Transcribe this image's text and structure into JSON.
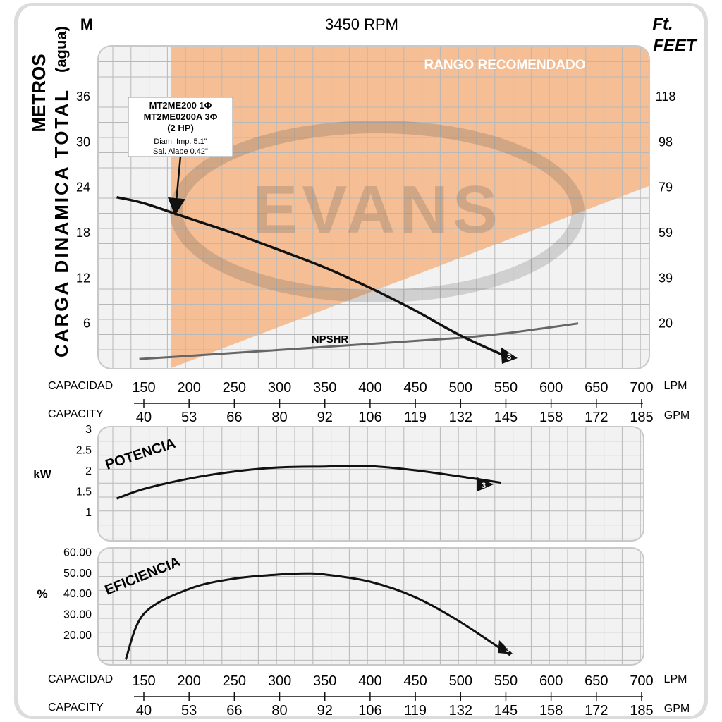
{
  "header": {
    "rpm": "3450 RPM",
    "unit_left": "M",
    "unit_right_1": "Ft.",
    "unit_right_2": "FEET",
    "yaxis_title_1": "METROS",
    "yaxis_title_2": "(agua)",
    "yaxis_title_3": "CARGA DINAMICA TOTAL"
  },
  "recommended_label": "RANGO RECOMENDADO",
  "watermark": "EVANS",
  "model_box": {
    "line1": "MT2ME200 1Φ",
    "line2": "MT2ME0200A 3Φ",
    "line3": "(2 HP)",
    "line4": "Diam. Imp. 5.1\"",
    "line5": "Sal. Alabe 0.42\""
  },
  "curve_number": "3",
  "npshr_label": "NPSHR",
  "capacity_axis": {
    "label_es": "CAPACIDAD",
    "label_en": "CAPACITY",
    "lpm_unit": "LPM",
    "gpm_unit": "GPM",
    "lpm_ticks": [
      "150",
      "200",
      "250",
      "300",
      "350",
      "400",
      "450",
      "500",
      "550",
      "600",
      "650",
      "700"
    ],
    "gpm_ticks": [
      "40",
      "53",
      "66",
      "80",
      "92",
      "106",
      "119",
      "132",
      "145",
      "158",
      "172",
      "185"
    ]
  },
  "head_ticks_m": [
    "36",
    "30",
    "24",
    "18",
    "12",
    "6"
  ],
  "head_ticks_ft": [
    "118",
    "98",
    "79",
    "59",
    "39",
    "20"
  ],
  "power": {
    "title": "POTENCIA",
    "unit": "kW",
    "ticks": [
      "3",
      "2.5",
      "2",
      "1.5",
      "1"
    ]
  },
  "efficiency": {
    "title": "EFICIENCIA",
    "unit": "%",
    "ticks": [
      "60.00",
      "50.00",
      "40.00",
      "30.00",
      "20.00"
    ]
  },
  "colors": {
    "background": "#dcdcdc",
    "panel": "#f2f2f2",
    "grid": "#b8b8b8",
    "recommended_zone": "#f5b88a",
    "curve": "#111111",
    "npshr": "#666666"
  },
  "chart_data": [
    {
      "type": "line",
      "title": "3450 RPM",
      "xlabel": "CAPACIDAD (LPM)",
      "ylabel": "CARGA DINAMICA TOTAL METROS (agua)",
      "xlim": [
        120,
        700
      ],
      "ylim": [
        0,
        42
      ],
      "series": [
        {
          "name": "MT2ME200 1Φ",
          "x": [
            120,
            150,
            200,
            250,
            300,
            350,
            400,
            450,
            500,
            555
          ],
          "y": [
            22.6,
            21.8,
            19.8,
            17.8,
            15.6,
            13.3,
            10.6,
            7.6,
            4.3,
            1.3
          ]
        },
        {
          "name": "NPSHR",
          "x": [
            145,
            200,
            300,
            400,
            500,
            550,
            600,
            630
          ],
          "y": [
            1.2,
            1.6,
            2.4,
            3.2,
            4.0,
            4.6,
            5.4,
            5.9
          ]
        }
      ],
      "recommended_zone": {
        "x_start": 180,
        "x_end": 700
      }
    },
    {
      "type": "line",
      "title": "POTENCIA",
      "ylabel": "kW",
      "xlim": [
        120,
        700
      ],
      "ylim": [
        0.6,
        3.2
      ],
      "series": [
        {
          "name": "MT2ME200 1Φ",
          "x": [
            120,
            150,
            200,
            250,
            300,
            350,
            400,
            450,
            500,
            545
          ],
          "y": [
            1.32,
            1.55,
            1.8,
            1.97,
            2.07,
            2.09,
            2.1,
            2.0,
            1.85,
            1.7
          ]
        }
      ]
    },
    {
      "type": "line",
      "title": "EFICIENCIA",
      "ylabel": "%",
      "xlim": [
        120,
        700
      ],
      "ylim": [
        8,
        65
      ],
      "series": [
        {
          "name": "MT2ME200 1Φ",
          "x": [
            130,
            150,
            200,
            250,
            300,
            330,
            350,
            400,
            450,
            500,
            555
          ],
          "y": [
            8,
            30,
            42,
            47,
            49,
            49.5,
            49,
            45.5,
            38,
            26,
            10
          ]
        }
      ]
    }
  ]
}
